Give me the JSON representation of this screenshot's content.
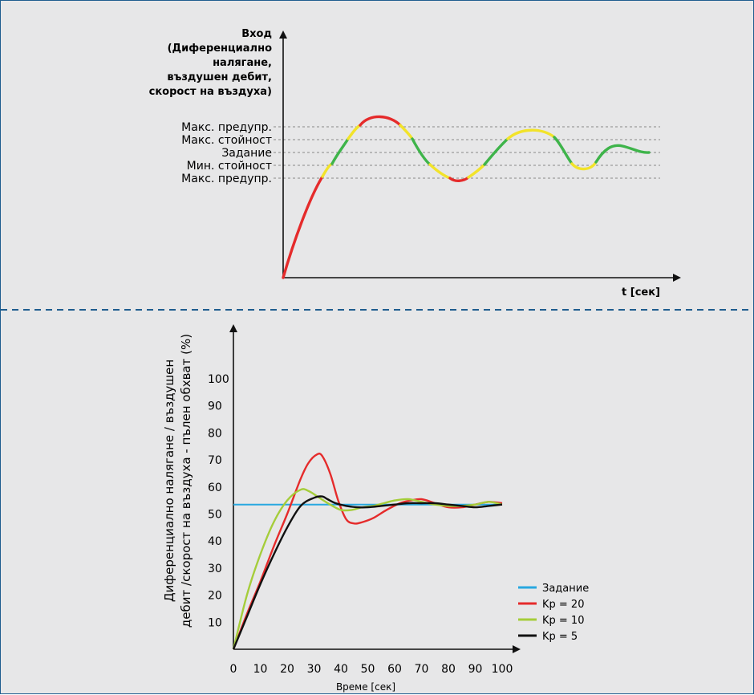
{
  "top_diagram": {
    "y_title_lines": [
      "Вход",
      "(Диференциално",
      "налягане,",
      "въздушен дебит,",
      "скорост на въздуха)"
    ],
    "x_title": "t [сек]",
    "levels": [
      "Макс. предупр.",
      "Макс. стойност",
      "Задание",
      "Мин. стойност",
      "Макс. предупр."
    ],
    "zone_colors": {
      "alarm": "#e52b2b",
      "warning": "#f2e32a",
      "normal": "#3eb44a"
    }
  },
  "chart_data": {
    "type": "line",
    "x_label": "Време [сек]",
    "y_label_lines": [
      "Диференциално налягане / въздушен",
      "дебит /скорост на въздуха - пълен обхват (%)"
    ],
    "x_ticks": [
      "0",
      "10",
      "20",
      "30",
      "40",
      "50",
      "60",
      "70",
      "80",
      "90",
      "100"
    ],
    "y_ticks": [
      "10",
      "20",
      "30",
      "40",
      "50",
      "60",
      "70",
      "80",
      "90",
      "100"
    ],
    "xlim": [
      0,
      100
    ],
    "ylim": [
      0,
      100
    ],
    "legend_position": "bottom-right",
    "series": [
      {
        "name": "Задание",
        "color": "#29a8e0",
        "x": [
          0,
          100
        ],
        "y": [
          53.5,
          53.5
        ]
      },
      {
        "name": "Kp = 20",
        "color": "#e52b2b",
        "x": [
          0,
          5,
          10,
          15,
          20,
          25,
          28,
          31,
          33,
          36,
          39,
          42,
          45,
          48,
          52,
          57,
          62,
          66,
          70,
          75,
          80,
          85,
          90,
          95,
          100
        ],
        "y": [
          0,
          13,
          25,
          38,
          50,
          63,
          69,
          72,
          71.5,
          65,
          55,
          48,
          46.5,
          47,
          48.5,
          51.5,
          54,
          55,
          55.5,
          54,
          52.5,
          52.5,
          53.5,
          54.5,
          54
        ]
      },
      {
        "name": "Kp = 10",
        "color": "#a5cd3a",
        "x": [
          0,
          5,
          10,
          15,
          20,
          25,
          28,
          32,
          36,
          40,
          44,
          48,
          52,
          56,
          60,
          65,
          70,
          75,
          80,
          85,
          90,
          95,
          100
        ],
        "y": [
          0,
          20,
          35,
          47,
          55,
          59,
          58.5,
          56,
          53.5,
          51.5,
          51.5,
          52.5,
          53,
          54,
          55,
          55.5,
          54.5,
          53.5,
          53,
          53,
          53.5,
          54.5,
          53.5
        ]
      },
      {
        "name": "Kp = 5",
        "color": "#111111",
        "x": [
          0,
          5,
          10,
          15,
          20,
          25,
          30,
          33,
          35,
          38,
          42,
          46,
          50,
          55,
          60,
          65,
          70,
          75,
          80,
          85,
          90,
          95,
          100
        ],
        "y": [
          0,
          12,
          24,
          35,
          45,
          53,
          56,
          56.5,
          55.5,
          54,
          53,
          52.5,
          52.5,
          53,
          53.5,
          54,
          54,
          54,
          53.5,
          53,
          52.5,
          53,
          53.5
        ]
      }
    ]
  }
}
